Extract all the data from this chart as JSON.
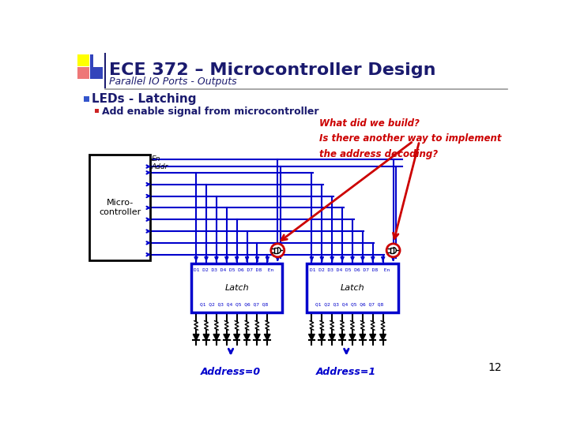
{
  "title": "ECE 372 – Microcontroller Design",
  "subtitle": "Parallel IO Ports - Outputs",
  "bullet1": "LEDs - Latching",
  "bullet2": "Add enable signal from microcontroller",
  "italic_text": "What did we build?\nIs there another way to implement\nthe address decoding?",
  "label_en": "En",
  "label_addr": "Addr",
  "label_micro": "Micro-\ncontroller",
  "label_latch": "Latch",
  "label_addr0": "Address=0",
  "label_addr1": "Address=1",
  "page_num": "12",
  "title_color": "#1a1a6e",
  "subtitle_color": "#1a1a6e",
  "red_color": "#cc0000",
  "blue_color": "#0000cc",
  "bg_color": "#ffffff",
  "black_color": "#000000"
}
